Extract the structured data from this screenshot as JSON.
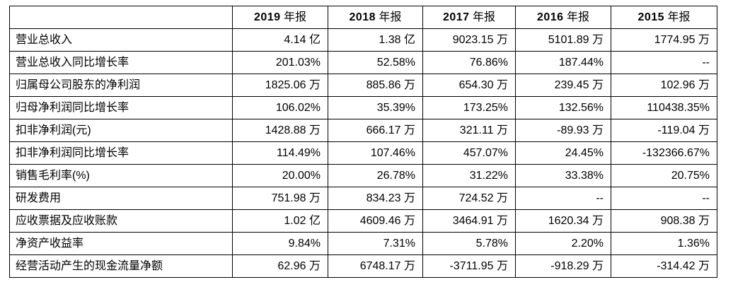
{
  "colors": {
    "background": "#ffffff",
    "border": "#000000",
    "text": "#000000"
  },
  "table": {
    "corner_label": ""
  },
  "chart_data": {
    "type": "table",
    "title": "",
    "columns": [
      {
        "year": "2019",
        "suffix": "年报"
      },
      {
        "year": "2018",
        "suffix": "年报"
      },
      {
        "year": "2017",
        "suffix": "年报"
      },
      {
        "year": "2016",
        "suffix": "年报"
      },
      {
        "year": "2015",
        "suffix": "年报"
      }
    ],
    "rows": [
      {
        "label": "营业总收入",
        "values": [
          "4.14 亿",
          "1.38 亿",
          "9023.15 万",
          "5101.89 万",
          "1774.95 万"
        ]
      },
      {
        "label": "营业总收入同比增长率",
        "values": [
          "201.03%",
          "52.58%",
          "76.86%",
          "187.44%",
          "--"
        ]
      },
      {
        "label": "归属母公司股东的净利润",
        "values": [
          "1825.06 万",
          "885.86 万",
          "654.30 万",
          "239.45 万",
          "102.96 万"
        ]
      },
      {
        "label": "归母净利润同比增长率",
        "values": [
          "106.02%",
          "35.39%",
          "173.25%",
          "132.56%",
          "110438.35%"
        ]
      },
      {
        "label": "扣非净利润(元)",
        "values": [
          "1428.88 万",
          "666.17 万",
          "321.11 万",
          "-89.93 万",
          "-119.04 万"
        ]
      },
      {
        "label": "扣非净利润同比增长率",
        "values": [
          "114.49%",
          "107.46%",
          "457.07%",
          "24.45%",
          "-132366.67%"
        ]
      },
      {
        "label": "销售毛利率(%)",
        "values": [
          "20.00%",
          "26.78%",
          "31.22%",
          "33.38%",
          "20.75%"
        ]
      },
      {
        "label": "研发费用",
        "values": [
          "751.98 万",
          "834.23 万",
          "724.52 万",
          "--",
          "--"
        ]
      },
      {
        "label": "应收票据及应收账款",
        "values": [
          "1.02 亿",
          "4609.46 万",
          "3464.91 万",
          "1620.34 万",
          "908.38 万"
        ]
      },
      {
        "label": "净资产收益率",
        "values": [
          "9.84%",
          "7.31%",
          "5.78%",
          "2.20%",
          "1.36%"
        ]
      },
      {
        "label": "经营活动产生的现金流量净额",
        "values": [
          "62.96 万",
          "6748.17 万",
          "-3711.95 万",
          "-918.29 万",
          "-314.42 万"
        ]
      }
    ]
  }
}
